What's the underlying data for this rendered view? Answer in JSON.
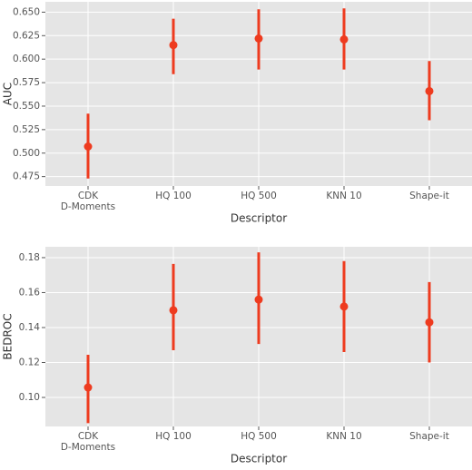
{
  "chart_data": [
    {
      "type": "pointrange",
      "x_label": "Descriptor",
      "y_label": "AUC",
      "categories": [
        "CDK\nD-Moments",
        "HQ 100",
        "HQ 500",
        "KNN 10",
        "Shape-it"
      ],
      "values": [
        0.507,
        0.615,
        0.622,
        0.621,
        0.566
      ],
      "lower": [
        0.473,
        0.584,
        0.589,
        0.589,
        0.535
      ],
      "upper": [
        0.542,
        0.643,
        0.653,
        0.654,
        0.598
      ],
      "color": "#ee3b1f",
      "grid": true,
      "ylim": [
        0.465,
        0.661
      ],
      "yticks": [
        {
          "value": 0.475,
          "label": "0.475"
        },
        {
          "value": 0.5,
          "label": "0.500"
        },
        {
          "value": 0.525,
          "label": "0.525"
        },
        {
          "value": 0.55,
          "label": "0.550"
        },
        {
          "value": 0.575,
          "label": "0.575"
        },
        {
          "value": 0.6,
          "label": "0.600"
        },
        {
          "value": 0.625,
          "label": "0.625"
        },
        {
          "value": 0.65,
          "label": "0.650"
        }
      ]
    },
    {
      "type": "pointrange",
      "x_label": "Descriptor",
      "y_label": "BEDROC",
      "categories": [
        "CDK\nD-Moments",
        "HQ 100",
        "HQ 500",
        "KNN 10",
        "Shape-it"
      ],
      "values": [
        0.1057,
        0.1499,
        0.156,
        0.152,
        0.143
      ],
      "lower": [
        0.0853,
        0.127,
        0.1306,
        0.126,
        0.12
      ],
      "upper": [
        0.1244,
        0.1764,
        0.183,
        0.178,
        0.166
      ],
      "color": "#ee3b1f",
      "grid": true,
      "ylim": [
        0.0834,
        0.1862
      ],
      "yticks": [
        {
          "value": 0.1,
          "label": "0.10"
        },
        {
          "value": 0.12,
          "label": "0.12"
        },
        {
          "value": 0.14,
          "label": "0.14"
        },
        {
          "value": 0.16,
          "label": "0.16"
        },
        {
          "value": 0.18,
          "label": "0.18"
        }
      ]
    }
  ]
}
